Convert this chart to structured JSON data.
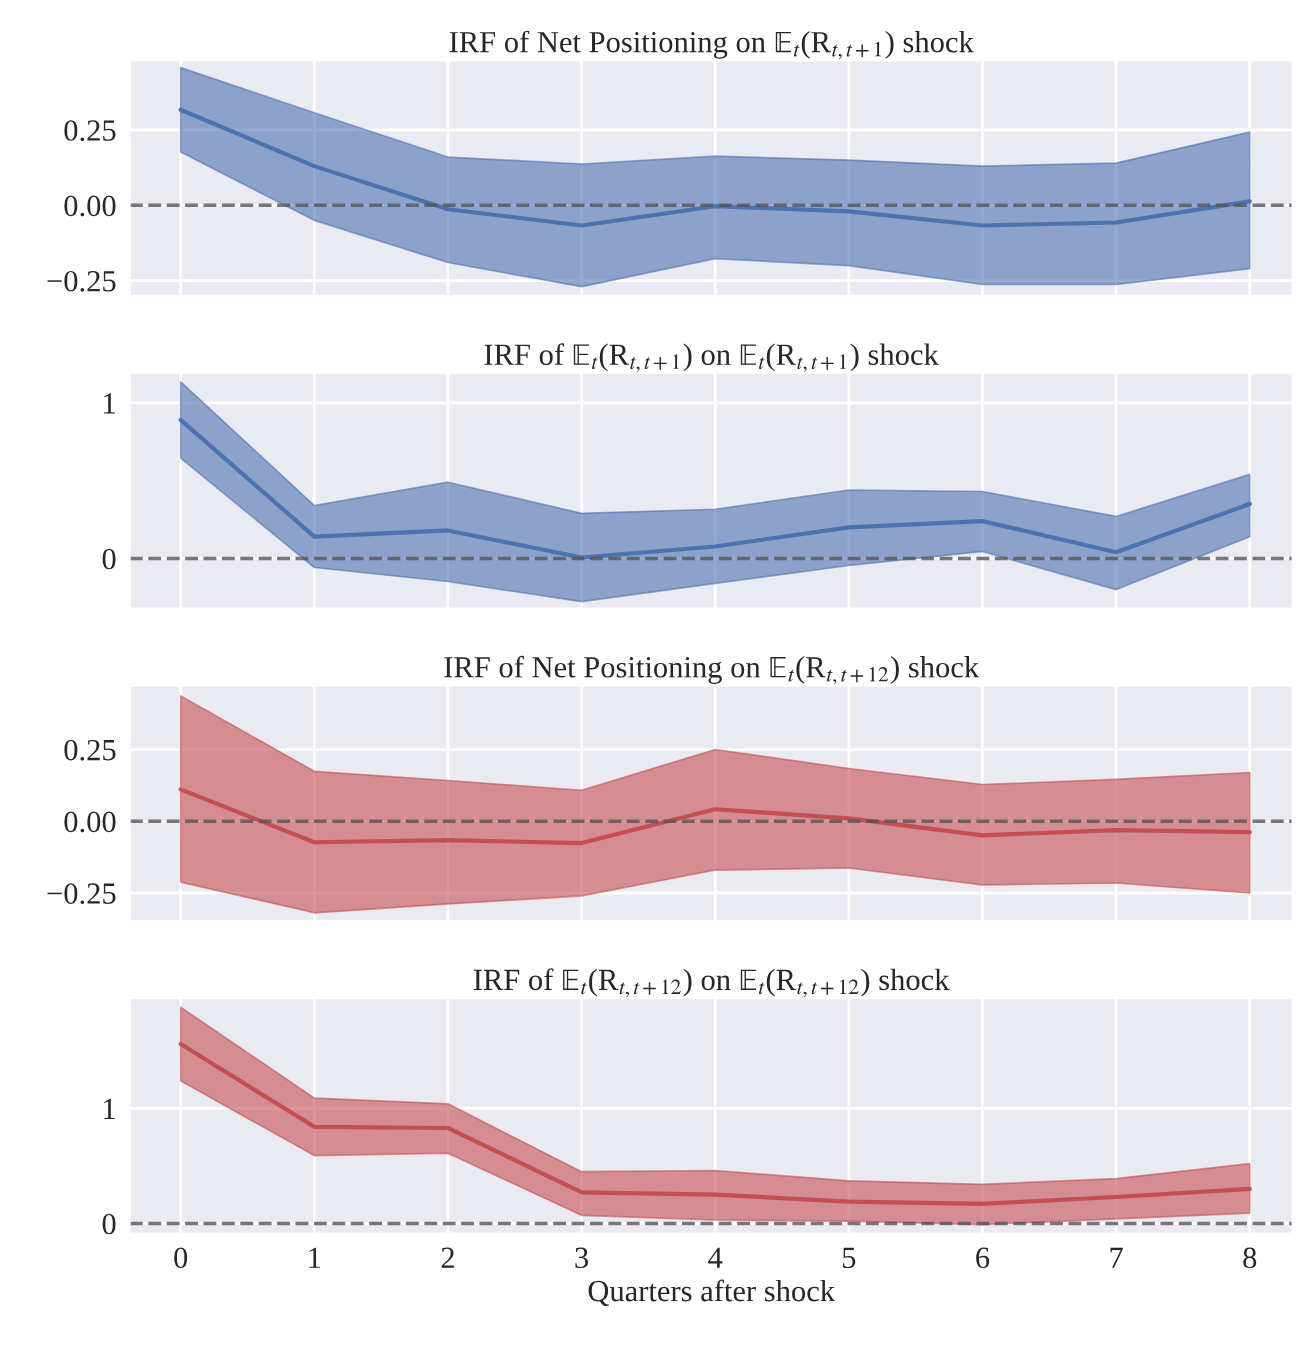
{
  "chart_data": [
    {
      "type": "line",
      "title": "IRF of Net Positioning on 𝔼$_{t}$(R$_{t,t+1}$) shock",
      "x": [
        0,
        1,
        2,
        3,
        4,
        5,
        6,
        7,
        8
      ],
      "xlim": [
        -0.38,
        8.32
      ],
      "xticks": [
        0,
        1,
        2,
        3,
        4,
        5,
        6,
        7,
        8
      ],
      "ylim": [
        -0.3,
        0.48
      ],
      "yticks": [
        {
          "value": -0.25,
          "label": "−0.25"
        },
        {
          "value": 0,
          "label": "0.00"
        },
        {
          "value": 0.25,
          "label": "0.25"
        }
      ],
      "tick_labels": "y",
      "grid": true,
      "legend": false,
      "series": [
        {
          "color": "#4c72b0",
          "values": [
            0.317,
            0.13,
            -0.013,
            -0.067,
            -0.003,
            -0.02,
            -0.067,
            -0.057,
            0.013
          ],
          "upper": [
            0.457,
            0.307,
            0.16,
            0.137,
            0.163,
            0.15,
            0.13,
            0.14,
            0.243
          ],
          "lower": [
            0.177,
            -0.05,
            -0.19,
            -0.27,
            -0.177,
            -0.2,
            -0.263,
            -0.263,
            -0.21
          ]
        }
      ],
      "ref_lines": [
        {
          "axis": "y",
          "value": 0,
          "line_style": "dashed",
          "color": "#555555"
        }
      ]
    },
    {
      "type": "line",
      "title": "IRF of 𝔼$_{t}$(R$_{t,t+1}$) on 𝔼$_{t}$(R$_{t,t+1}$) shock",
      "x": [
        0,
        1,
        2,
        3,
        4,
        5,
        6,
        7,
        8
      ],
      "xlim": [
        -0.38,
        8.32
      ],
      "xticks": [
        0,
        1,
        2,
        3,
        4,
        5,
        6,
        7,
        8
      ],
      "ylim": [
        -0.32,
        1.19
      ],
      "yticks": [
        0,
        1
      ],
      "tick_labels": "y",
      "grid": true,
      "legend": false,
      "series": [
        {
          "color": "#4c72b0",
          "values": [
            0.89,
            0.14,
            0.18,
            0.006,
            0.077,
            0.2,
            0.24,
            0.04,
            0.35
          ],
          "upper": [
            1.135,
            0.34,
            0.49,
            0.29,
            0.316,
            0.44,
            0.43,
            0.27,
            0.54
          ],
          "lower": [
            0.645,
            -0.058,
            -0.148,
            -0.277,
            -0.16,
            -0.045,
            0.045,
            -0.2,
            0.14
          ]
        }
      ],
      "ref_lines": [
        {
          "axis": "y",
          "value": 0,
          "line_style": "dashed",
          "color": "#555555"
        }
      ]
    },
    {
      "type": "line",
      "title": "IRF of Net Positioning on 𝔼$_{t}$(R$_{t,t+12}$) shock",
      "x": [
        0,
        1,
        2,
        3,
        4,
        5,
        6,
        7,
        8
      ],
      "xlim": [
        -0.38,
        8.32
      ],
      "xticks": [
        0,
        1,
        2,
        3,
        4,
        5,
        6,
        7,
        8
      ],
      "ylim": [
        -0.347,
        0.472
      ],
      "yticks": [
        {
          "value": -0.25,
          "label": "−0.25"
        },
        {
          "value": 0,
          "label": "0.00"
        },
        {
          "value": 0.25,
          "label": "0.25"
        }
      ],
      "tick_labels": "y",
      "grid": true,
      "legend": false,
      "series": [
        {
          "color": "#c44e52",
          "values": [
            0.111,
            -0.073,
            -0.066,
            -0.076,
            0.042,
            0.01,
            -0.049,
            -0.031,
            -0.038
          ],
          "upper": [
            0.437,
            0.174,
            0.142,
            0.108,
            0.25,
            0.184,
            0.128,
            0.146,
            0.17
          ],
          "lower": [
            -0.212,
            -0.319,
            -0.288,
            -0.26,
            -0.17,
            -0.163,
            -0.222,
            -0.215,
            -0.25
          ]
        }
      ],
      "ref_lines": [
        {
          "axis": "y",
          "value": 0,
          "line_style": "dashed",
          "color": "#555555"
        }
      ]
    },
    {
      "type": "line",
      "title": "IRF of 𝔼$_{t}$(R$_{t,t+12}$) on 𝔼$_{t}$(R$_{t,t+12}$) shock",
      "xlabel": "Quarters after shock",
      "x": [
        0,
        1,
        2,
        3,
        4,
        5,
        6,
        7,
        8
      ],
      "xlim": [
        -0.38,
        8.32
      ],
      "xticks": [
        0,
        1,
        2,
        3,
        4,
        5,
        6,
        7,
        8
      ],
      "ylim": [
        -0.087,
        1.957
      ],
      "yticks": [
        0,
        1
      ],
      "grid": true,
      "legend": false,
      "series": [
        {
          "color": "#c44e52",
          "values": [
            1.56,
            0.84,
            0.83,
            0.27,
            0.25,
            0.19,
            0.17,
            0.23,
            0.3
          ],
          "upper": [
            1.88,
            1.09,
            1.04,
            0.45,
            0.46,
            0.37,
            0.34,
            0.39,
            0.52
          ],
          "lower": [
            1.24,
            0.59,
            0.61,
            0.07,
            0.03,
            0.02,
            -0.01,
            0.04,
            0.09
          ]
        }
      ],
      "ref_lines": [
        {
          "axis": "y",
          "value": 0,
          "line_style": "dashed",
          "color": "#555555"
        }
      ]
    }
  ]
}
